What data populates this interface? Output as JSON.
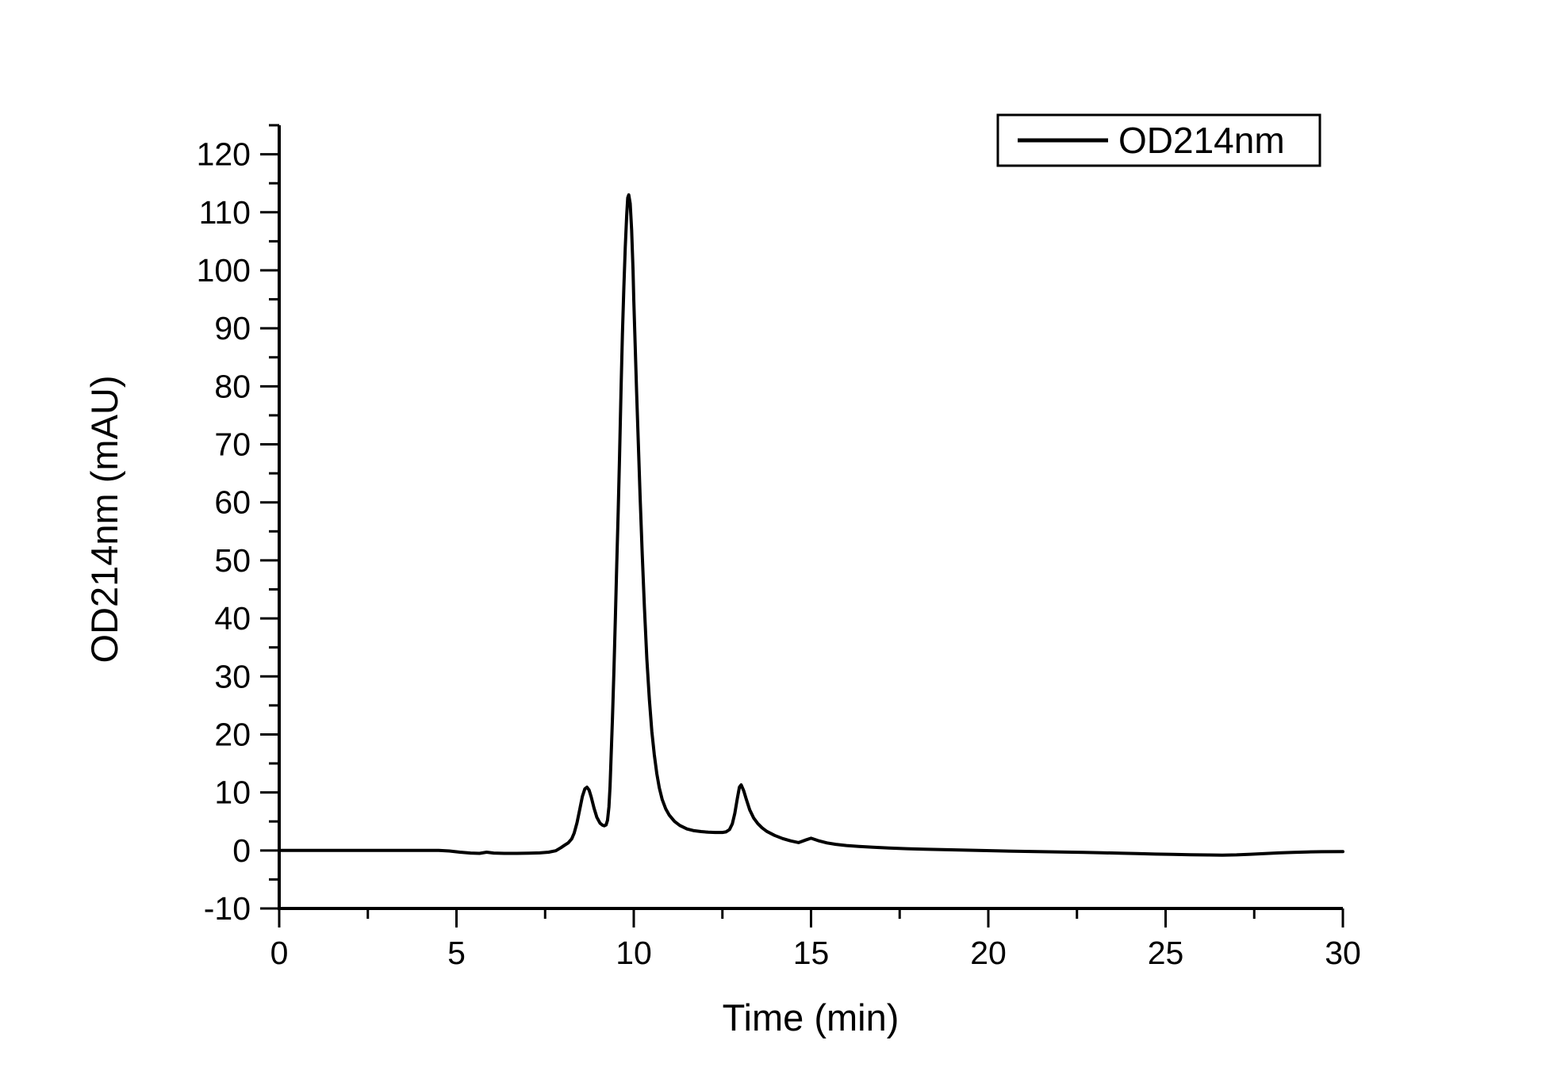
{
  "figure": {
    "background": "#ffffff",
    "foreground": "#000000"
  },
  "chart_data": {
    "type": "line",
    "title": "",
    "xlabel": "Time (min)",
    "ylabel": "OD214nm (mAU)",
    "xlim": [
      0,
      30
    ],
    "ylim": [
      -10,
      125
    ],
    "grid": false,
    "x_major_ticks": [
      0,
      5,
      10,
      15,
      20,
      25,
      30
    ],
    "x_minor_ticks": [
      2.5,
      7.5,
      12.5,
      17.5,
      22.5,
      27.5
    ],
    "y_major_ticks": [
      -10,
      0,
      10,
      20,
      30,
      40,
      50,
      60,
      70,
      80,
      90,
      100,
      110,
      120
    ],
    "y_minor_ticks": [
      -5,
      5,
      15,
      25,
      35,
      45,
      55,
      65,
      75,
      85,
      95,
      105,
      115,
      125
    ],
    "legend": {
      "position": "top-right",
      "entries": [
        {
          "label": "OD214nm",
          "color": "#000000"
        }
      ]
    },
    "annotations": {
      "peaks": [
        {
          "time_min": 8.68,
          "value_mAU": 10.9
        },
        {
          "time_min": 9.85,
          "value_mAU": 113.0
        },
        {
          "time_min": 13.03,
          "value_mAU": 11.3
        },
        {
          "time_min": 15.0,
          "value_mAU": 2.1
        }
      ]
    },
    "series": [
      {
        "name": "OD214nm",
        "color": "#000000",
        "points": [
          [
            0,
            0
          ],
          [
            0.5,
            0
          ],
          [
            1,
            0
          ],
          [
            1.5,
            0
          ],
          [
            2,
            0
          ],
          [
            2.5,
            0
          ],
          [
            3,
            0
          ],
          [
            3.5,
            0
          ],
          [
            4,
            0
          ],
          [
            4.5,
            0
          ],
          [
            4.8,
            -0.1
          ],
          [
            5.1,
            -0.3
          ],
          [
            5.4,
            -0.45
          ],
          [
            5.65,
            -0.5
          ],
          [
            5.85,
            -0.3
          ],
          [
            6.05,
            -0.45
          ],
          [
            6.35,
            -0.5
          ],
          [
            6.7,
            -0.5
          ],
          [
            7.05,
            -0.48
          ],
          [
            7.35,
            -0.42
          ],
          [
            7.6,
            -0.3
          ],
          [
            7.8,
            -0.05
          ],
          [
            7.95,
            0.5
          ],
          [
            8.05,
            0.9
          ],
          [
            8.15,
            1.3
          ],
          [
            8.25,
            2.0
          ],
          [
            8.32,
            3.0
          ],
          [
            8.4,
            4.8
          ],
          [
            8.48,
            7.2
          ],
          [
            8.55,
            9.3
          ],
          [
            8.62,
            10.6
          ],
          [
            8.68,
            10.9
          ],
          [
            8.74,
            10.4
          ],
          [
            8.8,
            9.2
          ],
          [
            8.88,
            7.3
          ],
          [
            8.96,
            5.7
          ],
          [
            9.05,
            4.7
          ],
          [
            9.12,
            4.35
          ],
          [
            9.17,
            4.25
          ],
          [
            9.22,
            4.4
          ],
          [
            9.26,
            5.2
          ],
          [
            9.3,
            7.5
          ],
          [
            9.33,
            11
          ],
          [
            9.36,
            16
          ],
          [
            9.4,
            23
          ],
          [
            9.44,
            31
          ],
          [
            9.48,
            40
          ],
          [
            9.52,
            49
          ],
          [
            9.56,
            58
          ],
          [
            9.6,
            68
          ],
          [
            9.64,
            79
          ],
          [
            9.68,
            89
          ],
          [
            9.72,
            97
          ],
          [
            9.76,
            104
          ],
          [
            9.8,
            109.5
          ],
          [
            9.83,
            112.5
          ],
          [
            9.86,
            113
          ],
          [
            9.9,
            111.5
          ],
          [
            9.94,
            107
          ],
          [
            9.98,
            100
          ],
          [
            10.0,
            95
          ],
          [
            10.04,
            87
          ],
          [
            10.08,
            79
          ],
          [
            10.13,
            70
          ],
          [
            10.18,
            61
          ],
          [
            10.24,
            51
          ],
          [
            10.3,
            42
          ],
          [
            10.37,
            33
          ],
          [
            10.44,
            26
          ],
          [
            10.51,
            20.5
          ],
          [
            10.58,
            16.5
          ],
          [
            10.65,
            13.2
          ],
          [
            10.72,
            10.8
          ],
          [
            10.8,
            8.8
          ],
          [
            10.9,
            7.2
          ],
          [
            11.0,
            6.1
          ],
          [
            11.15,
            5.0
          ],
          [
            11.3,
            4.3
          ],
          [
            11.5,
            3.7
          ],
          [
            11.7,
            3.4
          ],
          [
            11.9,
            3.25
          ],
          [
            12.1,
            3.15
          ],
          [
            12.3,
            3.1
          ],
          [
            12.5,
            3.1
          ],
          [
            12.6,
            3.2
          ],
          [
            12.7,
            3.6
          ],
          [
            12.78,
            4.6
          ],
          [
            12.85,
            6.4
          ],
          [
            12.92,
            8.9
          ],
          [
            12.98,
            10.9
          ],
          [
            13.03,
            11.3
          ],
          [
            13.1,
            10.3
          ],
          [
            13.17,
            8.9
          ],
          [
            13.27,
            7.0
          ],
          [
            13.38,
            5.6
          ],
          [
            13.5,
            4.6
          ],
          [
            13.62,
            3.9
          ],
          [
            13.75,
            3.3
          ],
          [
            13.97,
            2.6
          ],
          [
            14.2,
            2.05
          ],
          [
            14.42,
            1.65
          ],
          [
            14.65,
            1.35
          ],
          [
            14.87,
            1.85
          ],
          [
            15.0,
            2.1
          ],
          [
            15.2,
            1.7
          ],
          [
            15.45,
            1.3
          ],
          [
            15.7,
            1.05
          ],
          [
            16.0,
            0.85
          ],
          [
            16.35,
            0.7
          ],
          [
            16.75,
            0.55
          ],
          [
            17.2,
            0.42
          ],
          [
            17.7,
            0.3
          ],
          [
            18.2,
            0.22
          ],
          [
            18.7,
            0.14
          ],
          [
            19.2,
            0.07
          ],
          [
            19.7,
            0.0
          ],
          [
            20.2,
            -0.06
          ],
          [
            20.7,
            -0.12
          ],
          [
            21.2,
            -0.17
          ],
          [
            21.7,
            -0.23
          ],
          [
            22.2,
            -0.28
          ],
          [
            22.7,
            -0.33
          ],
          [
            23.2,
            -0.4
          ],
          [
            23.7,
            -0.47
          ],
          [
            24.2,
            -0.55
          ],
          [
            24.7,
            -0.63
          ],
          [
            25.2,
            -0.68
          ],
          [
            25.7,
            -0.74
          ],
          [
            26.2,
            -0.78
          ],
          [
            26.6,
            -0.8
          ],
          [
            27.0,
            -0.76
          ],
          [
            27.4,
            -0.66
          ],
          [
            27.8,
            -0.54
          ],
          [
            28.2,
            -0.42
          ],
          [
            28.6,
            -0.32
          ],
          [
            29.0,
            -0.26
          ],
          [
            29.4,
            -0.22
          ],
          [
            30,
            -0.2
          ]
        ]
      }
    ]
  }
}
